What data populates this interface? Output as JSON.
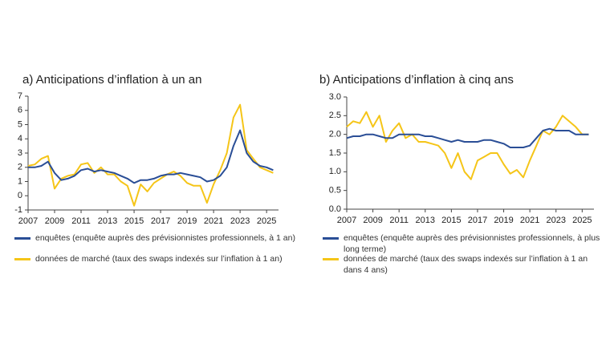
{
  "chart_data": [
    {
      "type": "line",
      "title": "a)  Anticipations d’inflation à un an",
      "x": [
        2007,
        2007.5,
        2008,
        2008.5,
        2009,
        2009.5,
        2010,
        2010.5,
        2011,
        2011.5,
        2012,
        2012.5,
        2013,
        2013.5,
        2014,
        2014.5,
        2015,
        2015.5,
        2016,
        2016.5,
        2017,
        2017.5,
        2018,
        2018.5,
        2019,
        2019.5,
        2020,
        2020.5,
        2021,
        2021.5,
        2022,
        2022.5,
        2023,
        2023.5,
        2024,
        2024.5,
        2025,
        2025.5
      ],
      "series": [
        {
          "name": "enquêtes (enquête auprès des prévisionnistes professionnels, à 1 an)",
          "color": "#2a4e96",
          "values": [
            2.0,
            2.0,
            2.1,
            2.4,
            1.6,
            1.1,
            1.2,
            1.4,
            1.8,
            1.9,
            1.7,
            1.8,
            1.7,
            1.6,
            1.4,
            1.2,
            0.9,
            1.1,
            1.1,
            1.2,
            1.4,
            1.5,
            1.5,
            1.6,
            1.5,
            1.4,
            1.3,
            1.0,
            1.1,
            1.4,
            2.0,
            3.5,
            4.6,
            3.0,
            2.4,
            2.1,
            2.0,
            1.8
          ]
        },
        {
          "name": "données de marché (taux des swaps indexés sur l’inflation à 1 an)",
          "color": "#f5c518",
          "values": [
            2.1,
            2.2,
            2.6,
            2.8,
            0.5,
            1.2,
            1.4,
            1.5,
            2.2,
            2.3,
            1.6,
            2.0,
            1.5,
            1.5,
            1.0,
            0.7,
            -0.7,
            0.8,
            0.3,
            0.9,
            1.2,
            1.5,
            1.7,
            1.4,
            0.9,
            0.7,
            0.7,
            -0.5,
            0.8,
            1.8,
            3.0,
            5.5,
            6.4,
            3.2,
            2.6,
            2.0,
            1.8,
            1.6
          ]
        }
      ],
      "xlim": [
        2007,
        2025.9
      ],
      "xticks": [
        2007,
        2009,
        2011,
        2013,
        2015,
        2017,
        2019,
        2021,
        2023,
        2025
      ],
      "ylim": [
        -1,
        7
      ],
      "yticks": [
        -1,
        0,
        1,
        2,
        3,
        4,
        5,
        6,
        7
      ]
    },
    {
      "type": "line",
      "title": "b)  Anticipations d’inflation à cinq ans",
      "x": [
        2007,
        2007.5,
        2008,
        2008.5,
        2009,
        2009.5,
        2010,
        2010.5,
        2011,
        2011.5,
        2012,
        2012.5,
        2013,
        2013.5,
        2014,
        2014.5,
        2015,
        2015.5,
        2016,
        2016.5,
        2017,
        2017.5,
        2018,
        2018.5,
        2019,
        2019.5,
        2020,
        2020.5,
        2021,
        2021.5,
        2022,
        2022.5,
        2023,
        2023.5,
        2024,
        2024.5,
        2025,
        2025.5
      ],
      "series": [
        {
          "name": "enquêtes (enquête auprès des prévisionnistes professionnels, à plus long terme)",
          "color": "#2a4e96",
          "values": [
            1.9,
            1.95,
            1.95,
            2.0,
            2.0,
            1.95,
            1.9,
            1.9,
            2.0,
            2.0,
            2.0,
            2.0,
            1.95,
            1.95,
            1.9,
            1.85,
            1.8,
            1.85,
            1.8,
            1.8,
            1.8,
            1.85,
            1.85,
            1.8,
            1.75,
            1.65,
            1.65,
            1.65,
            1.7,
            1.9,
            2.1,
            2.15,
            2.1,
            2.1,
            2.1,
            2.0,
            2.0,
            2.0
          ]
        },
        {
          "name": "données de marché (taux des swaps indexés sur l’inflation à 1 an dans 4 ans)",
          "color": "#f5c518",
          "values": [
            2.2,
            2.35,
            2.3,
            2.6,
            2.2,
            2.5,
            1.8,
            2.1,
            2.3,
            1.9,
            2.0,
            1.8,
            1.8,
            1.75,
            1.7,
            1.5,
            1.1,
            1.5,
            1.0,
            0.8,
            1.3,
            1.4,
            1.5,
            1.5,
            1.2,
            0.95,
            1.05,
            0.85,
            1.3,
            1.7,
            2.1,
            2.0,
            2.2,
            2.5,
            2.35,
            2.2,
            2.0,
            2.0
          ]
        }
      ],
      "xlim": [
        2007,
        2025.9
      ],
      "xticks": [
        2007,
        2009,
        2011,
        2013,
        2015,
        2017,
        2019,
        2021,
        2023,
        2025
      ],
      "ylim": [
        0,
        3
      ],
      "yticks": [
        {
          "value": 0,
          "label": "0.0"
        },
        {
          "value": 0.5,
          "label": "0.5"
        },
        {
          "value": 1,
          "label": "1.0"
        },
        {
          "value": 1.5,
          "label": "1.5"
        },
        {
          "value": 2,
          "label": "2.0"
        },
        {
          "value": 2.5,
          "label": "2.5"
        },
        {
          "value": 3,
          "label": "3.0"
        }
      ]
    }
  ]
}
